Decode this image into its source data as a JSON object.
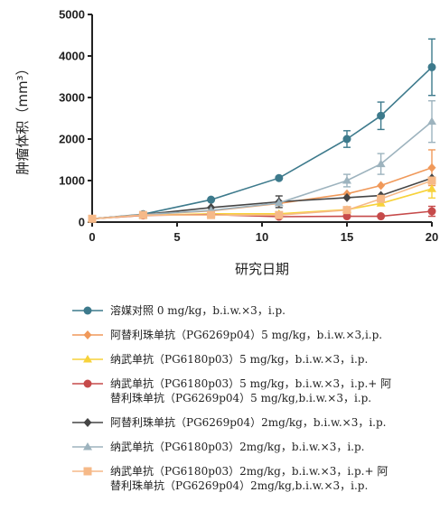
{
  "chart_data": {
    "type": "line",
    "xlabel": "研究日期",
    "ylabel": "肿瘤体积（mm³）",
    "xlim": [
      0,
      20
    ],
    "ylim": [
      0,
      5000
    ],
    "xticks": [
      "0",
      "5",
      "10",
      "15",
      "20"
    ],
    "yticks": [
      "0",
      "1000",
      "2000",
      "3000",
      "4000",
      "5000"
    ],
    "grid": false,
    "legend_position": "bottom",
    "x": [
      0,
      3,
      7,
      11,
      15,
      17,
      20
    ],
    "series": [
      {
        "name": "溶媒对照 0 mg/kg，b.i.w.×3，i.p.",
        "color": "#3d7a8c",
        "marker": "circle",
        "values": [
          80,
          190,
          540,
          1060,
          2000,
          2560,
          3730
        ],
        "errors": [
          0,
          0,
          0,
          0,
          200,
          330,
          680
        ]
      },
      {
        "name": "阿替利珠单抗（PG6269p04）5 mg/kg，b.i.w.×3,i.p.",
        "color": "#f0995a",
        "marker": "diamond",
        "values": [
          80,
          180,
          270,
          450,
          680,
          880,
          1310
        ],
        "errors": [
          0,
          0,
          0,
          0,
          0,
          0,
          430
        ]
      },
      {
        "name": "纳武单抗（PG6180p03）5 mg/kg，b.i.w.×3，i.p.",
        "color": "#f7d23a",
        "marker": "triangle",
        "values": [
          80,
          160,
          200,
          200,
          300,
          450,
          800
        ],
        "errors": [
          0,
          0,
          0,
          0,
          0,
          0,
          220
        ]
      },
      {
        "name": "纳武单抗（PG6180p03）5 mg/kg，b.i.w.×3，i.p.+ 阿\n替利珠单抗（PG6269p04）5 mg/kg,b.i.w.×3，i.p.",
        "color": "#c64a4a",
        "marker": "circle",
        "values": [
          80,
          160,
          180,
          130,
          140,
          140,
          260
        ],
        "errors": [
          0,
          0,
          0,
          0,
          0,
          0,
          120
        ]
      },
      {
        "name": "阿替利珠单抗（PG6269p04）2mg/kg，b.i.w.×3，i.p.",
        "color": "#454545",
        "marker": "diamond",
        "values": [
          80,
          180,
          350,
          490,
          590,
          640,
          1060
        ],
        "errors": [
          0,
          0,
          0,
          140,
          0,
          0,
          0
        ]
      },
      {
        "name": "纳武单抗（PG6180p03）2mg/kg，b.i.w.×3，i.p.",
        "color": "#9db3be",
        "marker": "triangle",
        "values": [
          80,
          180,
          280,
          460,
          1000,
          1400,
          2420
        ],
        "errors": [
          0,
          0,
          0,
          0,
          150,
          250,
          500
        ]
      },
      {
        "name": "纳武单抗（PG6180p03）2mg/kg，b.i.w.×3，i.p.+ 阿\n替利珠单抗（PG6269p04）2mg/kg,b.i.w.×3，i.p.",
        "color": "#f6b988",
        "marker": "square",
        "values": [
          80,
          170,
          170,
          170,
          290,
          560,
          1000
        ],
        "errors": [
          0,
          0,
          0,
          0,
          0,
          0,
          0
        ]
      }
    ]
  }
}
